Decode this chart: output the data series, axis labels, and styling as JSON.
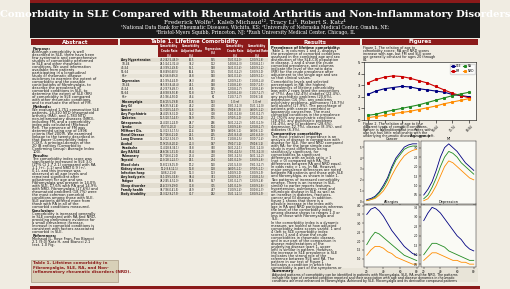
{
  "title": "Comorbidity in SLE Compared with Rheumatoid Arthritis and Non-inflammatory Disorders",
  "authors": "Frederick Wolfe¹, Kaleb Michaud¹², Tracy Li³, Robert S. Katz⁴",
  "affiliations_line1": "¹National Data Bank for Rheumatic Diseases, Wichita, KS; ²University of Nebraska Medical Center, Omaha, NE;",
  "affiliations_line2": "³Bristol-Myers Squibb, Princeton, NJ; ⁴Rush University Medical Center, Chicago, IL",
  "background_color": "#f0ece2",
  "title_bg": "#1a1a1a",
  "title_color": "#ffffff",
  "section_header_bg": "#8b1a1a",
  "section_header_color": "#ffffff",
  "table_header_bg": "#8b1a1a",
  "table_header_color": "#ffffff",
  "table_row_alt": "#e2ddd0",
  "table_row_normal": "#f0ece2",
  "red_bar_color": "#8b1a1a",
  "line_colors_fig1": [
    "#000080",
    "#cc0000",
    "#228b22",
    "#ff8c00"
  ],
  "line_labels_fig1": [
    "SLE",
    "FM",
    "RA",
    "NRD"
  ],
  "fig1_x": [
    20,
    25,
    30,
    35,
    40,
    45,
    50,
    55,
    60,
    65,
    70,
    75,
    80
  ],
  "fig1_y_SLE": [
    2.2,
    2.5,
    2.7,
    2.8,
    2.9,
    2.85,
    2.7,
    2.6,
    2.5,
    2.4,
    2.2,
    2.1,
    2.0
  ],
  "fig1_y_FM": [
    3.2,
    3.5,
    3.7,
    3.8,
    3.75,
    3.6,
    3.4,
    3.2,
    2.9,
    2.6,
    2.3,
    2.1,
    1.9
  ],
  "fig1_y_RA": [
    0.4,
    0.5,
    0.7,
    0.85,
    1.0,
    1.15,
    1.3,
    1.5,
    1.7,
    1.9,
    2.1,
    2.25,
    2.4
  ],
  "fig1_y_NRD": [
    0.2,
    0.3,
    0.4,
    0.55,
    0.65,
    0.75,
    0.9,
    1.05,
    1.2,
    1.4,
    1.55,
    1.7,
    1.85
  ],
  "fig2_cancer_SLE": [
    0.2,
    0.3,
    0.5,
    0.9,
    1.5,
    2.2,
    3.2,
    4.0,
    4.5,
    5.0,
    5.2,
    5.3,
    5.3
  ],
  "fig2_cancer_RA": [
    0.1,
    0.2,
    0.4,
    0.8,
    1.3,
    2.0,
    3.0,
    3.8,
    4.3,
    4.8,
    5.0,
    5.1,
    5.1
  ],
  "fig2_cancer_NRD": [
    0.1,
    0.2,
    0.3,
    0.6,
    1.0,
    1.6,
    2.4,
    3.1,
    3.7,
    4.2,
    4.5,
    4.7,
    4.8
  ],
  "fig2_mi_SLE": [
    0.5,
    0.8,
    1.2,
    1.8,
    2.5,
    3.0,
    3.2,
    3.0,
    2.8,
    2.5,
    2.2,
    2.0,
    1.8
  ],
  "fig2_mi_RA": [
    0.3,
    0.5,
    0.9,
    1.4,
    2.0,
    2.5,
    2.8,
    2.7,
    2.5,
    2.2,
    2.0,
    1.8,
    1.6
  ],
  "fig2_mi_NRD": [
    0.2,
    0.3,
    0.6,
    1.0,
    1.5,
    2.0,
    2.3,
    2.2,
    2.0,
    1.8,
    1.6,
    1.4,
    1.3
  ],
  "fig2_allergy_SLE": [
    3.5,
    3.8,
    3.9,
    3.7,
    3.4,
    3.0,
    2.6,
    2.3,
    2.0,
    1.7,
    1.5,
    1.3,
    1.2
  ],
  "fig2_allergy_RA": [
    1.8,
    2.2,
    2.5,
    2.4,
    2.2,
    2.0,
    1.8,
    1.6,
    1.4,
    1.2,
    1.1,
    1.0,
    0.9
  ],
  "fig2_allergy_NRD": [
    1.2,
    1.5,
    1.7,
    1.7,
    1.6,
    1.4,
    1.3,
    1.1,
    1.0,
    0.9,
    0.8,
    0.7,
    0.7
  ],
  "fig2_depr_SLE": [
    2.8,
    3.2,
    3.5,
    3.4,
    3.2,
    2.9,
    2.6,
    2.3,
    2.0,
    1.8,
    1.5,
    1.3,
    1.2
  ],
  "fig2_depr_RA": [
    1.0,
    1.3,
    1.6,
    1.6,
    1.5,
    1.4,
    1.2,
    1.1,
    1.0,
    0.9,
    0.8,
    0.7,
    0.7
  ],
  "fig2_depr_NRD": [
    0.7,
    0.9,
    1.1,
    1.1,
    1.0,
    0.9,
    0.8,
    0.7,
    0.7,
    0.6,
    0.6,
    0.5,
    0.5
  ],
  "abstract_text": "Purpose: Although comorbidity is well described in SLE, there have been few systematic and comprehensive studies of comorbidity performed in SLE and other rheumatic conditions. We used information available from patients participating in a longitudinal study of rheumatic disease outcomes to examine the extent of comorbidity and the possible contributions of fibromyalgia, to describe the prevalence of comorbid conditions in SLE, to determine the extent of SLE (RR) of comorbidity in SLE compared with other rheumatic conditions, and to evaluate the effect of FM.\n\nMethods: We evaluated 1,751 consecutive SLE patients, 14,310 NTD (rheumatoid arthritis (RA)), and 1,783 NTD non-inflammatory diseases (NRD), including FM, and a comorbidity index was calculated (Michaud Ref). The presence of FM was determined using one of 1996 criteria (Ref 2009). We examined linkage to the twenty described in that paper (Comorbidity Index (CIX)), a principal-domain of the 20 IB entities (Comorbidity Confirming Group): Average Index 100).\n\nResults: The comorbidity index score was significantly increased in SLE 3.0 (27% CI 1.7 2.1) compared with RA 1.1 (+/- 1.1) and NRD 0.9 (+/- 0.1), and this increase was observed at all age levels and remained significant after adjustment for age and sex. Fibromyalgia was present in 14.0% with SLE, 17.6% with RA and 14.9% with NRD. Fibromyalgia (17.6%) and rheumatoid problems (18.7%) were the most common comorbid conditions among those with SLE. SLE patients differed more from those with RA in all of the comorbid conditions measured.\n\nConclusion: Comorbidity is increased generally in SLE compared with RA and NRD, providing preliminary evidence for a small prevalence increase. Increase in comorbid conditions is consistent with factors associated comorbid in SLE.\n\nReferences: Michaud JL, Rose Fran, Fox Biancci 2.1 (9.0) Katz H, and Biancci 2.1 (ext. 1.0 Fig.",
  "table_caption": "Table 1. Lifetime comorbidity in\nFibromyalgia, SLE, RA, and Non-\ninflammatory rheumatic disorders (NRD).",
  "results_text1": "Prevalence of lifetime comorbidity: Table 1, in columns 1 and 2, displays the prevalence of comorbid conditions assessed in the combined age and sex distribution of the SLE-CIX population in disease. 1 and 4 show the crude comorbid prevalence, and columns indicate the level of the ratio data (RR) for the crude prevalence after adjustment to the single age and sex so that clinical values.\n\nComorbidity levels and selected percentages in RA: the highest prevalences of lifetime comorbidity was with 2 rows listed the proportions of (7%). Any (42.4%) diabetes (22.4%), any psychiatric problems (20.6%), depression (16.3%), any problems psychiatry problems, pulmonary (18.7%) and alcohol (17.9%). The percentage of patients with cancer comorbid or apparently cancer-free. The most comorbid conditions in the prevalence 22 (70)% any psychiatric conditions (28.4%), any psychiatric problems (31.4%), any GI problems (28.6%), depression 22.7%), disease (8.3%), and diabetes (6.3%).",
  "results_text2": "Comparative comorbidity: The most (relative) importance is an analysis of disease in comparison with disease for SLE. Fibr and NRD compared with RA: for the large simple case study is most differences being statistically significant, for comorbidities as significant differences with an odds ratio > 1 (not > 0) compared with RA. The differences between RA and NRD equal. In odds ratio > 1 vs. In RA. However, major prevalence differences are noted between RA patients and those with SLE and fibromyalgia, as shown in table 1.\n\nTwo patterns of increased comorbidity emerge. There is an increase in SLE, similar to earlier reports features, hypertension, pulmonary, renal and neurologic disease in SLE as well as an increase in diabetes, fractures, cancer and GI disease. In addition, figure 1 shows that there is a possible increase in the index with age in RA and NRD participants whereas the level of the comorbidity index among disease shows to ranges 1.0 or less in those with Fibromyalgia and SLE.",
  "results_text3": "In the comorbidity index is a dynamic measure, we looked at how adjusted comorbidity index scores varied. 1 and 4 (left to SLE comorbidity index scores) 1 and 4 show the crude comorbidities in rheumatic disease, and in our part of the comparison in disease manifestations of the underlying disease (part 1, upper left) is similar in pattern. However, the increase in SLE prevalence is SLE indicates the strong role of the reference between SLE and RA. The pattern in our test of Figure 1 indicates a condition in which the comorbidity is part of the symptoms or manifestations in the underlying disease. The left (or in the Figure with increasing age is an indicator of left sampling between comorbidities in SLE. These lines suggest that comorbidity indices that indicate comorbidities should be enhanced for each survey disease.",
  "summary_text": "Summary: Adjusted patterns of comorbidity can be identified in patients with Fibromyalgia, SLE, RA and the NRD. The patterns include the type of comorbid condition reported and their association with age and disease dynamics in rheumatic conditions are most enhanced in Fibromyalgia. Achieved by SLE. Fibromyalgia and its derivative compound patterns prevail Disease. Diabetes and depression the best common variant found. Gaps, with a survival observation prevalence of above 20% in RA/NRD and 10 to 15% in SLE and Fibromyalgia. Depression is the most strongly comorbid correlate of SLE-PH quality of life.",
  "fig1_caption": "Figure 1. The relation of age to comorbidity scores: RA and NRD scores increase with age, but FM and SLE score are generally constant for ages 20 through 84.",
  "fig2_caption": "Figure 2. The relation of age to four different types of comorbid conditions. Cancer is a condition that increases with age but has little relationship with the underlying rheumatic diseases; upper left. Myocardial Infarction (MI) is a condition that increases with age and is related to the underlying rheumatic disease; upper right. Damage allergies is a condition which is part of the symptoms or manifestations of the underlying diseases; lower left. Depression is a condition that represents lifetime traits or manifestations of underlying diseases; lower right."
}
